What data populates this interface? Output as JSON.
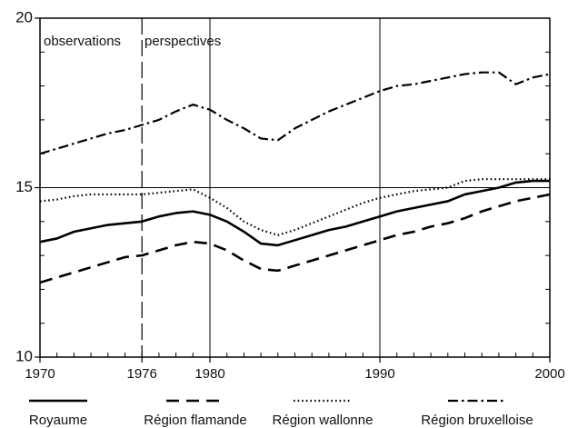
{
  "chart_data": {
    "type": "line",
    "x": [
      1970,
      1971,
      1972,
      1973,
      1974,
      1975,
      1976,
      1977,
      1978,
      1979,
      1980,
      1981,
      1982,
      1983,
      1984,
      1985,
      1986,
      1987,
      1988,
      1989,
      1990,
      1991,
      1992,
      1993,
      1994,
      1995,
      1996,
      1997,
      1998,
      1999,
      2000
    ],
    "series": [
      {
        "name": "Royaume",
        "color": "#000000",
        "style": "solid",
        "values": [
          13.4,
          13.5,
          13.7,
          13.8,
          13.9,
          13.95,
          14.0,
          14.15,
          14.25,
          14.3,
          14.2,
          14.0,
          13.7,
          13.35,
          13.3,
          13.45,
          13.6,
          13.75,
          13.85,
          14.0,
          14.15,
          14.3,
          14.4,
          14.5,
          14.6,
          14.8,
          14.9,
          15.0,
          15.15,
          15.2,
          15.2
        ]
      },
      {
        "name": "Région flamande",
        "color": "#000000",
        "style": "dashed",
        "values": [
          12.2,
          12.35,
          12.5,
          12.65,
          12.8,
          12.95,
          13.0,
          13.15,
          13.3,
          13.4,
          13.35,
          13.15,
          12.85,
          12.6,
          12.55,
          12.7,
          12.85,
          13.0,
          13.15,
          13.3,
          13.45,
          13.6,
          13.7,
          13.85,
          13.95,
          14.1,
          14.3,
          14.45,
          14.6,
          14.7,
          14.8
        ]
      },
      {
        "name": "Région wallonne",
        "color": "#000000",
        "style": "dotted",
        "values": [
          14.6,
          14.65,
          14.75,
          14.8,
          14.8,
          14.8,
          14.8,
          14.85,
          14.9,
          14.95,
          14.7,
          14.4,
          14.0,
          13.75,
          13.6,
          13.75,
          13.95,
          14.15,
          14.35,
          14.55,
          14.7,
          14.8,
          14.9,
          14.95,
          15.0,
          15.2,
          15.25,
          15.25,
          15.25,
          15.25,
          15.25
        ]
      },
      {
        "name": "Région bruxelloise",
        "color": "#000000",
        "style": "dashdot",
        "values": [
          16.0,
          16.15,
          16.3,
          16.45,
          16.6,
          16.7,
          16.85,
          17.0,
          17.25,
          17.45,
          17.3,
          17.0,
          16.75,
          16.45,
          16.4,
          16.75,
          17.0,
          17.25,
          17.45,
          17.65,
          17.85,
          18.0,
          18.05,
          18.15,
          18.25,
          18.35,
          18.4,
          18.4,
          18.05,
          18.25,
          18.35
        ]
      }
    ],
    "xlim": [
      1970,
      2000
    ],
    "xticks": [
      1970,
      1976,
      1980,
      1990,
      2000
    ],
    "ylim": [
      10,
      20
    ],
    "yticks": [
      10,
      15,
      20
    ],
    "xgrid": [
      1980,
      1990
    ],
    "ygrid": [
      15
    ],
    "minor_step": 1,
    "divider": 1976,
    "annotations": [
      "observations",
      "perspectives"
    ],
    "legend": "bottom"
  }
}
